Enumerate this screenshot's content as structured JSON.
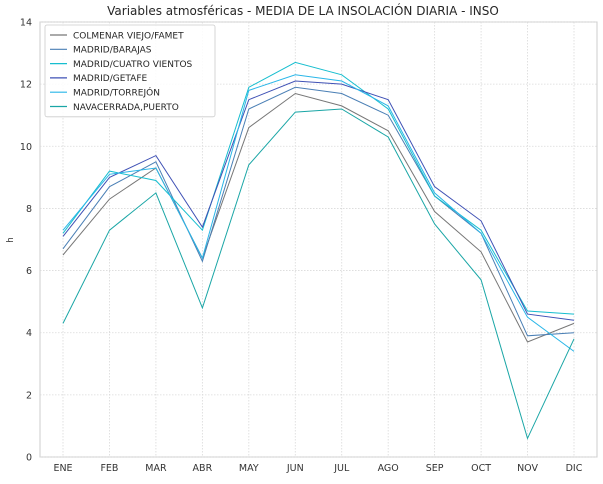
{
  "chart_data": {
    "type": "line",
    "title": "Variables atmosféricas - MEDIA DE LA INSOLACIÓN DIARIA - INSO",
    "xlabel": "",
    "ylabel": "h",
    "categories": [
      "ENE",
      "FEB",
      "MAR",
      "ABR",
      "MAY",
      "JUN",
      "JUL",
      "AGO",
      "SEP",
      "OCT",
      "NOV",
      "DIC"
    ],
    "ylim": [
      0,
      14
    ],
    "yticks": [
      0,
      2,
      4,
      6,
      8,
      10,
      12,
      14
    ],
    "grid": true,
    "legend_position": "top-left",
    "series": [
      {
        "name": "COLMENAR VIEJO/FAMET",
        "color": "#777777",
        "values": [
          6.5,
          8.3,
          9.3,
          6.4,
          10.6,
          11.7,
          11.3,
          10.5,
          7.9,
          6.6,
          3.7,
          4.3
        ]
      },
      {
        "name": "MADRID/BARAJAS",
        "color": "#4a7fb5",
        "values": [
          6.7,
          8.7,
          9.5,
          6.3,
          11.2,
          11.9,
          11.7,
          11.0,
          8.4,
          7.2,
          3.9,
          4.0
        ]
      },
      {
        "name": "MADRID/CUATRO VIENTOS",
        "color": "#17becf",
        "values": [
          7.2,
          9.2,
          8.9,
          7.3,
          11.9,
          12.7,
          12.3,
          11.2,
          8.4,
          7.3,
          4.7,
          4.6
        ]
      },
      {
        "name": "MADRID/GETAFE",
        "color": "#3f51b5",
        "values": [
          7.1,
          9.0,
          9.7,
          7.4,
          11.5,
          12.1,
          12.0,
          11.5,
          8.7,
          7.6,
          4.6,
          4.4
        ]
      },
      {
        "name": "MADRID/TORREJÓN",
        "color": "#29b6e8",
        "values": [
          7.3,
          9.1,
          9.3,
          6.4,
          11.8,
          12.3,
          12.1,
          11.3,
          8.5,
          7.2,
          4.5,
          3.4
        ]
      },
      {
        "name": "NAVACERRADA,PUERTO",
        "color": "#1aa6a6",
        "values": [
          4.3,
          7.3,
          8.5,
          4.8,
          9.4,
          11.1,
          11.2,
          10.3,
          7.5,
          5.7,
          0.6,
          3.8
        ]
      }
    ]
  }
}
